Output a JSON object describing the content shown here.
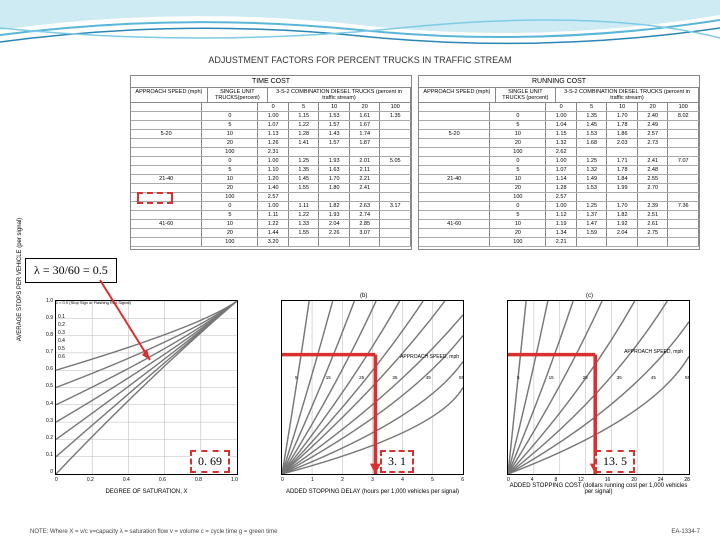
{
  "header": {
    "title": "ADJUSTMENT FACTORS FOR PERCENT TRUCKS IN TRAFFIC STREAM"
  },
  "colors": {
    "accent": "#d93030",
    "wave1": "#5ab6d8",
    "wave2": "#2a86b5",
    "curve": "#777777",
    "grid": "#bbbbbb"
  },
  "tables": {
    "left": {
      "header": "TIME COST",
      "cols": [
        "APPROACH SPEED (mph)",
        "SINGLE UNIT TRUCKS(percent)",
        "3-S-2 COMBINATION DIESEL TRUCKS (percent in traffic stream)"
      ],
      "subcols": [
        "0",
        "5",
        "10",
        "20",
        "100"
      ],
      "rows": [
        {
          "speed": "5-20",
          "pct": [
            "0",
            "5",
            "10",
            "20",
            "100"
          ],
          "vals": [
            [
              "1.00",
              "1.15",
              "1.53",
              "1.61",
              "1.35"
            ],
            [
              "1.07",
              "1.22",
              "1.57",
              "1.67",
              ""
            ],
            [
              "1.13",
              "1.28",
              "1.43",
              "1.74",
              ""
            ],
            [
              "1.26",
              "1.41",
              "1.57",
              "1.87",
              ""
            ],
            [
              "2.31",
              "",
              "",
              "",
              ""
            ]
          ]
        },
        {
          "speed": "21-40",
          "pct": [
            "0",
            "5",
            "10",
            "20",
            "100"
          ],
          "vals": [
            [
              "1.00",
              "1.25",
              "1.93",
              "2.01",
              "5.05"
            ],
            [
              "1.10",
              "1.35",
              "1.63",
              "2.11",
              ""
            ],
            [
              "1.20",
              "1.45",
              "1.70",
              "2.21",
              ""
            ],
            [
              "1.40",
              "1.55",
              "1.80",
              "2.41",
              ""
            ],
            [
              "2.57",
              "",
              "",
              "",
              ""
            ]
          ]
        },
        {
          "speed": "41-60",
          "pct": [
            "0",
            "5",
            "10",
            "20",
            "100"
          ],
          "vals": [
            [
              "1.00",
              "1.11",
              "1.82",
              "2.63",
              "3.17"
            ],
            [
              "1.11",
              "1.22",
              "1.93",
              "2.74",
              ""
            ],
            [
              "1.22",
              "1.33",
              "2.04",
              "2.85",
              ""
            ],
            [
              "1.44",
              "1.55",
              "2.26",
              "3.07",
              ""
            ],
            [
              "3.20",
              "",
              "",
              "",
              ""
            ]
          ]
        }
      ]
    },
    "right": {
      "header": "RUNNING COST",
      "cols": [
        "APPROACH SPEED (mph)",
        "SINGLE UNIT TRUCKS (percent)",
        "3-S-2 COMBINATION DIESEL TRUCKS (percent in traffic stream)"
      ],
      "subcols": [
        "0",
        "5",
        "10",
        "20",
        "100"
      ],
      "rows": [
        {
          "speed": "5-20",
          "pct": [
            "0",
            "5",
            "10",
            "20",
            "100"
          ],
          "vals": [
            [
              "1.00",
              "1.35",
              "1.70",
              "2.40",
              "8.02"
            ],
            [
              "1.04",
              "1.45",
              "1.78",
              "2.49",
              ""
            ],
            [
              "1.15",
              "1.53",
              "1.86",
              "2.57",
              ""
            ],
            [
              "1.32",
              "1.68",
              "2.03",
              "2.73",
              ""
            ],
            [
              "2.62",
              "",
              "",
              "",
              ""
            ]
          ]
        },
        {
          "speed": "21-40",
          "pct": [
            "0",
            "5",
            "10",
            "20",
            "100"
          ],
          "vals": [
            [
              "1.00",
              "1.25",
              "1.71",
              "2.41",
              "7.07"
            ],
            [
              "1.07",
              "1.32",
              "1.78",
              "2.48",
              ""
            ],
            [
              "1.14",
              "1.49",
              "1.84",
              "2.55",
              ""
            ],
            [
              "1.28",
              "1.53",
              "1.99",
              "2.70",
              ""
            ],
            [
              "2.57",
              "",
              "",
              "",
              ""
            ]
          ]
        },
        {
          "speed": "41-60",
          "pct": [
            "0",
            "5",
            "10",
            "20",
            "100"
          ],
          "vals": [
            [
              "1.00",
              "1.25",
              "1.70",
              "2.39",
              "7.36"
            ],
            [
              "1.12",
              "1.37",
              "1.82",
              "2.51",
              ""
            ],
            [
              "1.19",
              "1.47",
              "1.92",
              "2.61",
              ""
            ],
            [
              "1.34",
              "1.59",
              "2.04",
              "2.75",
              ""
            ],
            [
              "2.21",
              "",
              "",
              "",
              ""
            ]
          ]
        }
      ]
    }
  },
  "charts": {
    "a": {
      "type": "line",
      "xlabel": "DEGREE OF SATURATION, X",
      "ylabel": "AVERAGE STOPS PER VEHICLE (per signal)",
      "xlim": [
        0,
        1
      ],
      "ylim": [
        0,
        1
      ],
      "xticks": [
        0,
        0.2,
        0.4,
        0.6,
        0.8,
        1.0
      ],
      "yticks": [
        0,
        0.1,
        0.2,
        0.3,
        0.4,
        0.5,
        0.6,
        0.7,
        0.8,
        0.9,
        1.0
      ],
      "curve_labels": [
        "0.0",
        "0.1",
        "0.2",
        "0.3",
        "0.4",
        "0.5",
        "0.6"
      ],
      "top_label": "λ = 0.0 (Stop Sign or Flashing Red Signal)"
    },
    "b": {
      "type": "line",
      "xlabel": "ADDED STOPPING DELAY (hours per 1,000 vehicles per signal)",
      "xlim": [
        0,
        6
      ],
      "xticks": [
        0,
        1,
        2,
        3,
        4,
        5,
        6
      ],
      "label_title": "(b)",
      "speed_label": "APPROACH SPEED, mph",
      "speed_marks": [
        "5",
        "10",
        "15",
        "20",
        "25",
        "30",
        "35",
        "40",
        "45",
        "50",
        "55"
      ]
    },
    "c": {
      "type": "line",
      "xlabel": "ADDED STOPPING COST (dollars running cost per 1,000 vehicles per signal)",
      "xlim": [
        0,
        28
      ],
      "xticks": [
        0,
        4,
        8,
        12,
        16,
        20,
        24,
        28
      ],
      "label_title": "(c)",
      "speed_label": "APPROACH SPEED, mph",
      "speed_marks": [
        "5",
        "15",
        "25",
        "35",
        "45",
        "55"
      ]
    }
  },
  "annotations": {
    "lambda": "λ = 30/60 = 0.5",
    "val_a": "0. 69",
    "val_b": "3. 1",
    "val_c": "13. 5"
  },
  "footer": {
    "note": "NOTE: Where   X  =  v/c    v=capacity    λ = saturation flow    v = volume    c = cycle time    g = green time",
    "right": "EA-1334-7"
  }
}
